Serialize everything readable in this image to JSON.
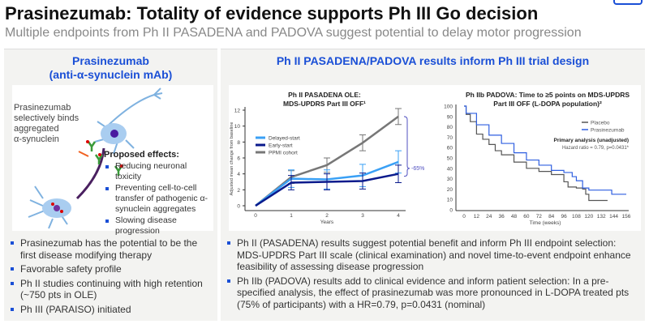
{
  "header": {
    "title": "Prasinezumab: Totality of evidence supports Ph III Go decision",
    "subtitle": "Multiple endpoints from Ph II PASADENA and PADOVA suggest potential to delay motor progression"
  },
  "left": {
    "heading_1": "Prasinezumab",
    "heading_2": "(anti-α-synuclein mAb)",
    "figure_label": [
      "Prasinezumab",
      "selectively binds",
      "aggregated",
      "α-synuclein"
    ],
    "effects_title": "Proposed effects:",
    "effects": [
      "Reducing neuronal toxicity",
      "Preventing cell-to-cell transfer of pathogenic α-synuclein aggregates",
      "Slowing disease progression"
    ],
    "bullets": [
      "Prasinezumab has the potential to be the first disease modifying therapy",
      "Favorable safety profile",
      "Ph II studies continuing with high retention (~750 pts in OLE)",
      "Ph III (PARAISO) initiated"
    ]
  },
  "right": {
    "heading": "Ph II PASADENA/PADOVA results inform Ph III trial design",
    "bullets": [
      "Ph II (PASADENA) results suggest potential benefit and inform Ph III endpoint selection: MDS-UPDRS Part III scale (clinical examination) and novel time-to-event endpoint enhance feasibility of assessing disease progression",
      "Ph IIb (PADOVA) results add to clinical evidence and inform patient selection: In a pre-specified analysis, the effect of prasinezumab was more pronounced in L-DOPA treated pts (75% of participants) with a HR=0.79, p=0.0431 (nominal)"
    ]
  },
  "chart_data": [
    {
      "type": "line",
      "title": "Ph II PASADENA OLE: MDS-UPDRS Part III OFF¹",
      "title_1": "Ph II PASADENA OLE:",
      "title_2": "MDS-UPDRS Part III OFF¹",
      "xlabel": "Years",
      "ylabel": "Adjusted mean change from baseline",
      "x": [
        0,
        1,
        2,
        3,
        4
      ],
      "xlim": [
        0,
        4
      ],
      "ylim": [
        0,
        12
      ],
      "yticks": [
        0,
        2,
        4,
        6,
        8,
        10,
        12
      ],
      "legend": "upper-left",
      "annotation": "-65%",
      "series": [
        {
          "name": "Delayed-start",
          "color": "#3aa0f5",
          "values": [
            0,
            3.4,
            3.3,
            3.8,
            5.5
          ],
          "errors": [
            0,
            1.1,
            1.2,
            1.4,
            1.4
          ]
        },
        {
          "name": "Early-start",
          "color": "#0a1a8c",
          "values": [
            0,
            2.9,
            3.0,
            3.1,
            4.0
          ],
          "errors": [
            0,
            0.9,
            1.0,
            1.0,
            1.1
          ]
        },
        {
          "name": "PPMI cohort",
          "color": "#777777",
          "values": [
            0,
            3.6,
            5.1,
            7.9,
            11.2
          ],
          "errors": [
            0,
            0.8,
            0.9,
            1.0,
            1.0
          ]
        }
      ]
    },
    {
      "type": "line",
      "title": "Ph IIb PADOVA: Time to ≥5 points on MDS-UPDRS Part III OFF (L-DOPA population)²",
      "title_1": "Ph IIb PADOVA: Time to ≥5 points on MDS-UPDRS",
      "title_2": "Part III OFF (L-DOPA population)²",
      "xlabel": "Time (weeks)",
      "ylabel": "Event-free probability",
      "xlim": [
        0,
        156
      ],
      "ylim": [
        0,
        100
      ],
      "xticks": [
        0,
        12,
        24,
        36,
        48,
        60,
        72,
        84,
        96,
        108,
        120,
        132,
        144,
        156
      ],
      "yticks": [
        0,
        10,
        20,
        30,
        40,
        50,
        60,
        70,
        80,
        90,
        100
      ],
      "legend": "right",
      "analysis_title": "Primary analysis (unadjusted)",
      "analysis_text": "Hazard ratio = 0.79, p=0.0431*",
      "series": [
        {
          "name": "Placebo",
          "color": "#555555",
          "points": [
            [
              0,
              100
            ],
            [
              2,
              92
            ],
            [
              6,
              85
            ],
            [
              12,
              73
            ],
            [
              18,
              68
            ],
            [
              24,
              63
            ],
            [
              30,
              57
            ],
            [
              36,
              53
            ],
            [
              48,
              46
            ],
            [
              60,
              40
            ],
            [
              72,
              37
            ],
            [
              84,
              34
            ],
            [
              96,
              27
            ],
            [
              100,
              22
            ],
            [
              108,
              21
            ],
            [
              114,
              20
            ],
            [
              117,
              15
            ],
            [
              120,
              9
            ],
            [
              138,
              9
            ]
          ]
        },
        {
          "name": "Prasinezumab",
          "color": "#2f5fe0",
          "points": [
            [
              0,
              100
            ],
            [
              2,
              93
            ],
            [
              12,
              82
            ],
            [
              24,
              72
            ],
            [
              36,
              64
            ],
            [
              48,
              55
            ],
            [
              60,
              48
            ],
            [
              72,
              43
            ],
            [
              84,
              38
            ],
            [
              96,
              36
            ],
            [
              104,
              32
            ],
            [
              108,
              28
            ],
            [
              114,
              21
            ],
            [
              120,
              19
            ],
            [
              138,
              19
            ],
            [
              142,
              15
            ],
            [
              156,
              15
            ]
          ]
        }
      ]
    }
  ]
}
